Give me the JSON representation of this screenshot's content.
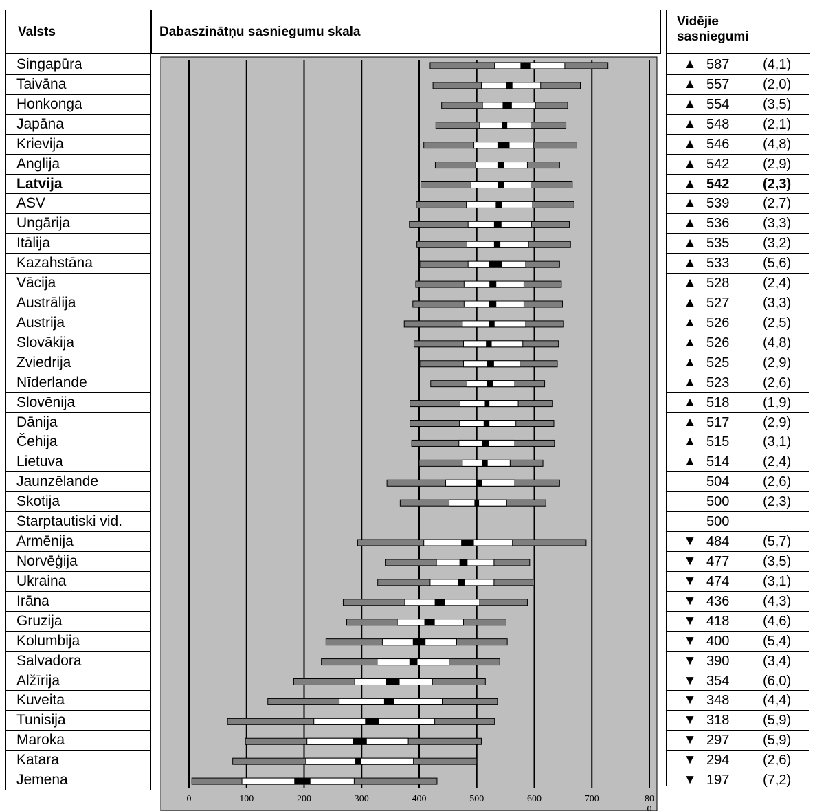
{
  "headers": {
    "country": "Valsts",
    "scale": "Dabaszinātņu sasniegumu skala",
    "average": "Vidējie sasniegumi"
  },
  "axis_ticks": [
    "0",
    "100",
    "200",
    "300",
    "400",
    "500",
    "600",
    "700",
    "80",
    "0"
  ],
  "colors": {
    "plot_bg": "#bebebe",
    "percentile_bar": "#7f7f7f",
    "ci_bar": "#000000",
    "above_mark": "▲",
    "below_mark": "▼"
  },
  "chart_data": {
    "type": "percentile-bars",
    "x_range": [
      0,
      800
    ],
    "grid": "vertical",
    "countries": [
      {
        "name": "Singapūra",
        "mean": "587",
        "se": "(4,1)",
        "mark": "▲",
        "p": [
          419,
          531,
          576,
          593,
          653,
          728
        ]
      },
      {
        "name": "Taivāna",
        "mean": "557",
        "se": "(2,0)",
        "mark": "▲",
        "p": [
          424,
          508,
          551,
          562,
          611,
          680
        ]
      },
      {
        "name": "Honkonga",
        "mean": "554",
        "se": "(3,5)",
        "mark": "▲",
        "p": [
          439,
          510,
          545,
          561,
          602,
          658
        ]
      },
      {
        "name": "Japāna",
        "mean": "548",
        "se": "(2,1)",
        "mark": "▲",
        "p": [
          429,
          505,
          544,
          553,
          594,
          655
        ]
      },
      {
        "name": "Krievija",
        "mean": "546",
        "se": "(4,8)",
        "mark": "▲",
        "p": [
          408,
          495,
          536,
          557,
          599,
          674
        ]
      },
      {
        "name": "Anglija",
        "mean": "542",
        "se": "(2,9)",
        "mark": "▲",
        "p": [
          428,
          498,
          536,
          548,
          588,
          644
        ]
      },
      {
        "name": "Latvija",
        "mean": "542",
        "se": "(2,3)",
        "mark": "▲",
        "bold": true,
        "p": [
          403,
          490,
          537,
          548,
          594,
          666
        ]
      },
      {
        "name": "ASV",
        "mean": "539",
        "se": "(2,7)",
        "mark": "▲",
        "p": [
          395,
          482,
          533,
          544,
          597,
          669
        ]
      },
      {
        "name": "Ungārija",
        "mean": "536",
        "se": "(3,3)",
        "mark": "▲",
        "p": [
          383,
          485,
          530,
          543,
          595,
          661
        ]
      },
      {
        "name": "Itālija",
        "mean": "535",
        "se": "(3,2)",
        "mark": "▲",
        "p": [
          396,
          483,
          530,
          541,
          590,
          663
        ]
      },
      {
        "name": "Kazahstāna",
        "mean": "533",
        "se": "(5,6)",
        "mark": "▲",
        "p": [
          401,
          485,
          521,
          544,
          585,
          644
        ]
      },
      {
        "name": "Vācija",
        "mean": "528",
        "se": "(2,4)",
        "mark": "▲",
        "p": [
          394,
          478,
          522,
          534,
          582,
          647
        ]
      },
      {
        "name": "Austrālija",
        "mean": "527",
        "se": "(3,3)",
        "mark": "▲",
        "p": [
          389,
          478,
          521,
          534,
          582,
          649
        ]
      },
      {
        "name": "Austrija",
        "mean": "526",
        "se": "(2,5)",
        "mark": "▲",
        "p": [
          374,
          475,
          521,
          531,
          585,
          651
        ]
      },
      {
        "name": "Slovākija",
        "mean": "526",
        "se": "(4,8)",
        "mark": "▲",
        "p": [
          391,
          477,
          516,
          526,
          580,
          642
        ]
      },
      {
        "name": "Zviedrija",
        "mean": "525",
        "se": "(2,9)",
        "mark": "▲",
        "p": [
          401,
          477,
          518,
          530,
          575,
          640
        ]
      },
      {
        "name": "Nīderlande",
        "mean": "523",
        "se": "(2,6)",
        "mark": "▲",
        "p": [
          420,
          483,
          517,
          528,
          566,
          618
        ]
      },
      {
        "name": "Slovēnija",
        "mean": "518",
        "se": "(1,9)",
        "mark": "▲",
        "p": [
          384,
          471,
          514,
          522,
          572,
          632
        ]
      },
      {
        "name": "Dānija",
        "mean": "517",
        "se": "(2,9)",
        "mark": "▲",
        "p": [
          384,
          470,
          512,
          522,
          568,
          634
        ]
      },
      {
        "name": "Čehija",
        "mean": "515",
        "se": "(3,1)",
        "mark": "▲",
        "p": [
          387,
          469,
          509,
          521,
          566,
          635
        ]
      },
      {
        "name": "Lietuva",
        "mean": "514",
        "se": "(2,4)",
        "mark": "▲",
        "p": [
          400,
          475,
          509,
          519,
          558,
          615
        ]
      },
      {
        "name": "Jaunzēlande",
        "mean": "504",
        "se": "(2,6)",
        "mark": "",
        "p": [
          344,
          446,
          499,
          509,
          566,
          644
        ]
      },
      {
        "name": "Skotija",
        "mean": "500",
        "se": "(2,3)",
        "mark": "",
        "p": [
          367,
          452,
          496,
          504,
          552,
          620
        ]
      },
      {
        "name": "Starptautiski vid.",
        "mean": "500",
        "se": "",
        "mark": ""
      },
      {
        "name": "Armēnija",
        "mean": "484",
        "se": "(5,7)",
        "mark": "▼",
        "p": [
          293,
          408,
          473,
          495,
          562,
          690
        ]
      },
      {
        "name": "Norvēģija",
        "mean": "477",
        "se": "(3,5)",
        "mark": "▼",
        "p": [
          341,
          430,
          470,
          484,
          530,
          592
        ]
      },
      {
        "name": "Ukraina",
        "mean": "474",
        "se": "(3,1)",
        "mark": "▼",
        "p": [
          328,
          419,
          468,
          480,
          530,
          600
        ]
      },
      {
        "name": "Irāna",
        "mean": "436",
        "se": "(4,3)",
        "mark": "▼",
        "p": [
          268,
          375,
          427,
          445,
          505,
          588
        ]
      },
      {
        "name": "Gruzija",
        "mean": "418",
        "se": "(4,6)",
        "mark": "▼",
        "p": [
          274,
          362,
          409,
          427,
          477,
          551
        ]
      },
      {
        "name": "Kolumbija",
        "mean": "400",
        "se": "(5,4)",
        "mark": "▼",
        "p": [
          238,
          336,
          389,
          411,
          465,
          553
        ]
      },
      {
        "name": "Salvadora",
        "mean": "390",
        "se": "(3,4)",
        "mark": "▼",
        "p": [
          230,
          327,
          383,
          397,
          452,
          540
        ]
      },
      {
        "name": "Alžīrija",
        "mean": "354",
        "se": "(6,0)",
        "mark": "▼",
        "p": [
          182,
          288,
          342,
          366,
          423,
          515
        ]
      },
      {
        "name": "Kuveita",
        "mean": "348",
        "se": "(4,4)",
        "mark": "▼",
        "p": [
          137,
          261,
          339,
          357,
          440,
          536
        ]
      },
      {
        "name": "Tunisija",
        "mean": "318",
        "se": "(5,9)",
        "mark": "▼",
        "p": [
          67,
          217,
          306,
          330,
          427,
          531
        ]
      },
      {
        "name": "Maroka",
        "mean": "297",
        "se": "(5,9)",
        "mark": "▼",
        "p": [
          98,
          205,
          285,
          309,
          381,
          508
        ]
      },
      {
        "name": "Katara",
        "mean": "294",
        "se": "(2,6)",
        "mark": "▼",
        "p": [
          76,
          203,
          289,
          299,
          390,
          500
        ]
      },
      {
        "name": "Jemena",
        "mean": "197",
        "se": "(7,2)",
        "mark": "▼",
        "p": [
          5,
          92,
          183,
          211,
          287,
          431
        ]
      }
    ]
  }
}
